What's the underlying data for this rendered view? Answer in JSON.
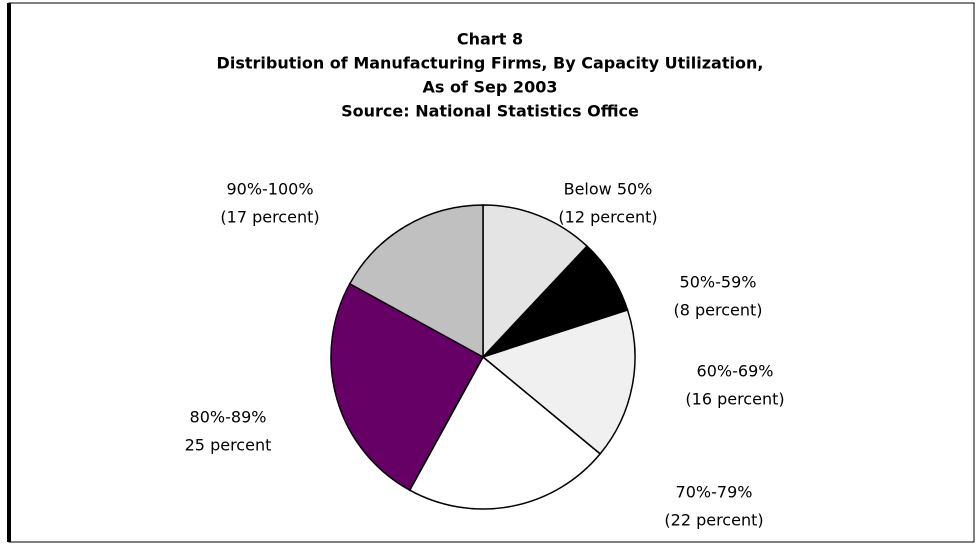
{
  "chart_data": {
    "type": "pie",
    "title": [
      "Chart 8",
      "Distribution of Manufacturing Firms, By Capacity Utilization,",
      "As of Sep 2003",
      "Source: National Statistics Office"
    ],
    "categories": [
      "Below 50%",
      "50%-59%",
      "60%-69%",
      "70%-79%",
      "80%-89%",
      "90%-100%"
    ],
    "values": [
      12,
      8,
      16,
      22,
      25,
      17
    ],
    "value_labels": [
      "(12 percent)",
      "(8 percent)",
      "(16 percent)",
      "(22 percent)",
      "25 percent",
      "(17 percent)"
    ],
    "colors": [
      "#e4e4e4",
      "#000000",
      "#f0f0f0",
      "#ffffff",
      "#660066",
      "#c0c0c0"
    ]
  }
}
